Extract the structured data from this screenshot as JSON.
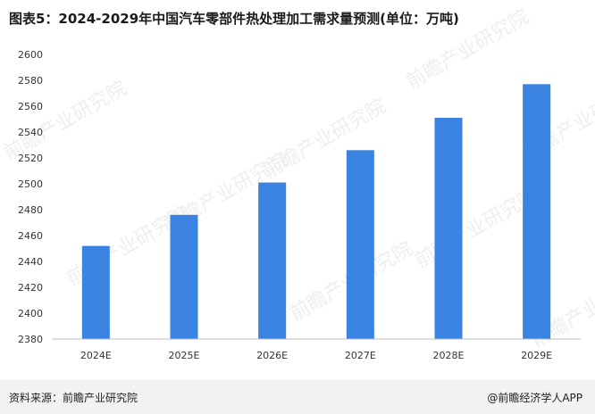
{
  "title": "图表5：2024-2029年中国汽车零部件热处理加工需求量预测(单位：万吨)",
  "source": "资料来源：前瞻产业研究院",
  "brand": "@前瞻经济学人APP",
  "watermark_text": "前瞻产业研究院",
  "colors": {
    "bar": "#3a83e0",
    "axis": "#bfbfbf",
    "footer_bg": "#f2f2f2"
  },
  "chart_data": {
    "type": "bar",
    "title": "图表5：2024-2029年中国汽车零部件热处理加工需求量预测(单位：万吨)",
    "categories": [
      "2024E",
      "2025E",
      "2026E",
      "2027E",
      "2028E",
      "2029E"
    ],
    "values": [
      2452,
      2476,
      2501,
      2526,
      2551,
      2577
    ],
    "ylim": [
      2380,
      2600
    ],
    "yticks": [
      2380,
      2400,
      2420,
      2440,
      2460,
      2480,
      2500,
      2520,
      2540,
      2560,
      2580,
      2600
    ],
    "xlabel": "",
    "ylabel": "",
    "grid": false,
    "legend": "none"
  }
}
